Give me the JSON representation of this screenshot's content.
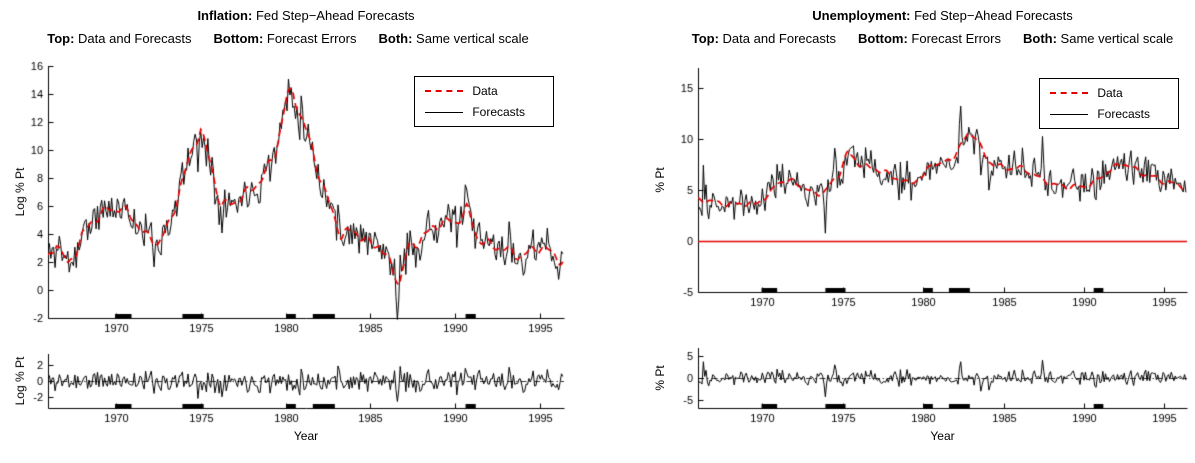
{
  "figure": {
    "background": "#ffffff"
  },
  "chart_data": [
    {
      "id": "inflation",
      "type": "line",
      "title": "Inflation: Fed Step−Ahead Forecasts",
      "title_bold": "Inflation:",
      "title_rest": " Fed Step−Ahead Forecasts",
      "subtitle": {
        "top_label": "Top:",
        "top_text": " Data and Forecasts",
        "bottom_label": "Bottom:",
        "bottom_text": " Forecast Errors",
        "both_label": "Both:",
        "both_text": " Same vertical scale"
      },
      "x": {
        "label": "Year",
        "lim": [
          1966,
          1996.4
        ],
        "ticks": [
          1970,
          1975,
          1980,
          1985,
          1990,
          1995
        ]
      },
      "top": {
        "ylabel": "Log % Pt",
        "ylim": [
          -2,
          16
        ],
        "yticks": [
          -2,
          0,
          2,
          4,
          6,
          8,
          10,
          12,
          14,
          16
        ],
        "legend": [
          {
            "label": "Data",
            "color": "#e50000",
            "style": "dashed"
          },
          {
            "label": "Forecasts",
            "color": "#000000",
            "style": "solid"
          }
        ],
        "data_keypoints": [
          [
            1966.0,
            2.0
          ],
          [
            1966.5,
            3.3
          ],
          [
            1967.2,
            1.8
          ],
          [
            1968.0,
            4.0
          ],
          [
            1968.8,
            5.0
          ],
          [
            1969.5,
            5.6
          ],
          [
            1970.3,
            6.1
          ],
          [
            1971.0,
            5.2
          ],
          [
            1971.8,
            3.6
          ],
          [
            1972.5,
            3.3
          ],
          [
            1973.2,
            5.0
          ],
          [
            1973.8,
            7.5
          ],
          [
            1974.6,
            10.2
          ],
          [
            1975.0,
            11.3
          ],
          [
            1975.5,
            9.3
          ],
          [
            1976.2,
            6.2
          ],
          [
            1977.0,
            6.3
          ],
          [
            1977.8,
            6.8
          ],
          [
            1978.6,
            8.0
          ],
          [
            1979.4,
            10.0
          ],
          [
            1980.1,
            13.8
          ],
          [
            1980.4,
            14.1
          ],
          [
            1980.9,
            12.2
          ],
          [
            1981.5,
            10.4
          ],
          [
            1982.2,
            7.5
          ],
          [
            1982.8,
            5.5
          ],
          [
            1983.3,
            3.6
          ],
          [
            1984.0,
            4.2
          ],
          [
            1984.8,
            3.6
          ],
          [
            1985.5,
            3.3
          ],
          [
            1986.2,
            1.6
          ],
          [
            1986.7,
            0.3
          ],
          [
            1987.2,
            3.0
          ],
          [
            1988.0,
            3.9
          ],
          [
            1989.0,
            4.6
          ],
          [
            1990.0,
            4.8
          ],
          [
            1990.7,
            6.0
          ],
          [
            1991.3,
            3.8
          ],
          [
            1992.0,
            3.0
          ],
          [
            1993.0,
            2.9
          ],
          [
            1994.0,
            2.6
          ],
          [
            1995.0,
            2.9
          ],
          [
            1996.0,
            2.4
          ],
          [
            1996.4,
            2.2
          ]
        ],
        "data_wiggle": 0.45,
        "forecast_noise_sd": 0.7,
        "outliers": [
          [
            1970.4,
            1.3
          ],
          [
            1974.8,
            -1.9
          ],
          [
            1983.1,
            1.6
          ],
          [
            1986.6,
            -2.0
          ]
        ],
        "zero_line": null
      },
      "bottom": {
        "ylabel": "Log % Pt",
        "ylim": [
          -3.4,
          3.4
        ],
        "yticks": [
          -2,
          0,
          2
        ],
        "series_name": "Forecast errors"
      },
      "recession_marks": [
        [
          1969.95,
          1970.92
        ],
        [
          1973.92,
          1975.17
        ],
        [
          1980.05,
          1980.6
        ],
        [
          1981.6,
          1982.9
        ],
        [
          1990.6,
          1991.2
        ]
      ],
      "seed": 11
    },
    {
      "id": "unemployment",
      "type": "line",
      "title": "Unemployment: Fed Step−Ahead Forecasts",
      "title_bold": "Unemployment:",
      "title_rest": " Fed Step−Ahead Forecasts",
      "subtitle": {
        "top_label": "Top:",
        "top_text": " Data and Forecasts",
        "bottom_label": "Bottom:",
        "bottom_text": " Forecast Errors",
        "both_label": "Both:",
        "both_text": " Same vertical scale"
      },
      "x": {
        "label": "Year",
        "lim": [
          1966,
          1996.4
        ],
        "ticks": [
          1970,
          1975,
          1980,
          1985,
          1990,
          1995
        ]
      },
      "top": {
        "ylabel": "% Pt",
        "ylim": [
          -5,
          17
        ],
        "yticks": [
          -5,
          0,
          5,
          10,
          15
        ],
        "legend": [
          {
            "label": "Data",
            "color": "#e50000",
            "style": "dashed"
          },
          {
            "label": "Forecasts",
            "color": "#000000",
            "style": "solid"
          }
        ],
        "data_keypoints": [
          [
            1966.0,
            3.9
          ],
          [
            1967.0,
            3.9
          ],
          [
            1967.8,
            3.7
          ],
          [
            1968.5,
            3.6
          ],
          [
            1969.5,
            3.5
          ],
          [
            1970.5,
            4.8
          ],
          [
            1971.0,
            5.9
          ],
          [
            1972.0,
            5.7
          ],
          [
            1973.0,
            4.9
          ],
          [
            1973.8,
            4.8
          ],
          [
            1974.8,
            6.5
          ],
          [
            1975.3,
            8.7
          ],
          [
            1976.0,
            7.7
          ],
          [
            1977.0,
            7.1
          ],
          [
            1978.0,
            6.3
          ],
          [
            1979.0,
            5.8
          ],
          [
            1980.0,
            6.3
          ],
          [
            1980.5,
            7.5
          ],
          [
            1981.0,
            7.4
          ],
          [
            1981.8,
            8.2
          ],
          [
            1982.8,
            10.6
          ],
          [
            1983.2,
            10.3
          ],
          [
            1984.0,
            7.8
          ],
          [
            1985.0,
            7.3
          ],
          [
            1986.0,
            7.1
          ],
          [
            1987.0,
            6.4
          ],
          [
            1988.0,
            5.7
          ],
          [
            1989.0,
            5.2
          ],
          [
            1990.0,
            5.3
          ],
          [
            1990.8,
            6.1
          ],
          [
            1991.5,
            6.9
          ],
          [
            1992.5,
            7.5
          ],
          [
            1993.3,
            7.0
          ],
          [
            1994.2,
            6.4
          ],
          [
            1995.0,
            5.7
          ],
          [
            1996.0,
            5.5
          ],
          [
            1996.4,
            5.4
          ]
        ],
        "data_wiggle": 0.3,
        "forecast_noise_sd": 0.85,
        "outliers": [
          [
            1966.3,
            2.3
          ],
          [
            1973.9,
            -4.8
          ],
          [
            1974.5,
            3.4
          ],
          [
            1982.3,
            2.4
          ],
          [
            1983.6,
            -4.3
          ],
          [
            1984.1,
            -3.6
          ],
          [
            1987.4,
            2.8
          ]
        ],
        "zero_line": {
          "y": 0,
          "color": "#e50000",
          "width": 1.6
        }
      },
      "bottom": {
        "ylabel": "% Pt",
        "ylim": [
          -6.8,
          6.8
        ],
        "yticks": [
          -5,
          0,
          5
        ],
        "series_name": "Forecast errors"
      },
      "recession_marks": [
        [
          1969.95,
          1970.92
        ],
        [
          1973.92,
          1975.17
        ],
        [
          1980.05,
          1980.6
        ],
        [
          1981.6,
          1982.9
        ],
        [
          1990.6,
          1991.2
        ]
      ],
      "seed": 29
    }
  ]
}
